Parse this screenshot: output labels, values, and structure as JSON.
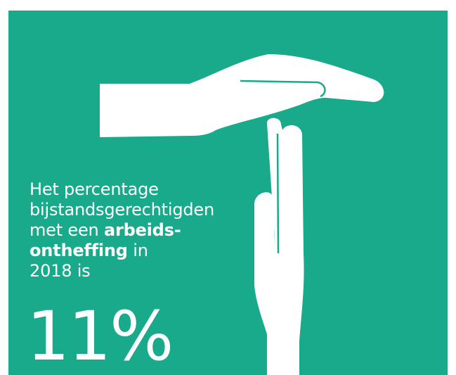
{
  "infographic": {
    "background_color": "#19AA8C",
    "text_color": "#FFFFFF",
    "icon": "hands-time-out-icon",
    "headline": {
      "line1": "Het percentage",
      "line2": "bijstandsgerechtigden",
      "line3_prefix": "met een ",
      "line3_bold": "arbeids-",
      "line4_bold": "ontheffing",
      "line4_suffix": " in",
      "line5": "2018 is"
    },
    "value": "11%"
  }
}
